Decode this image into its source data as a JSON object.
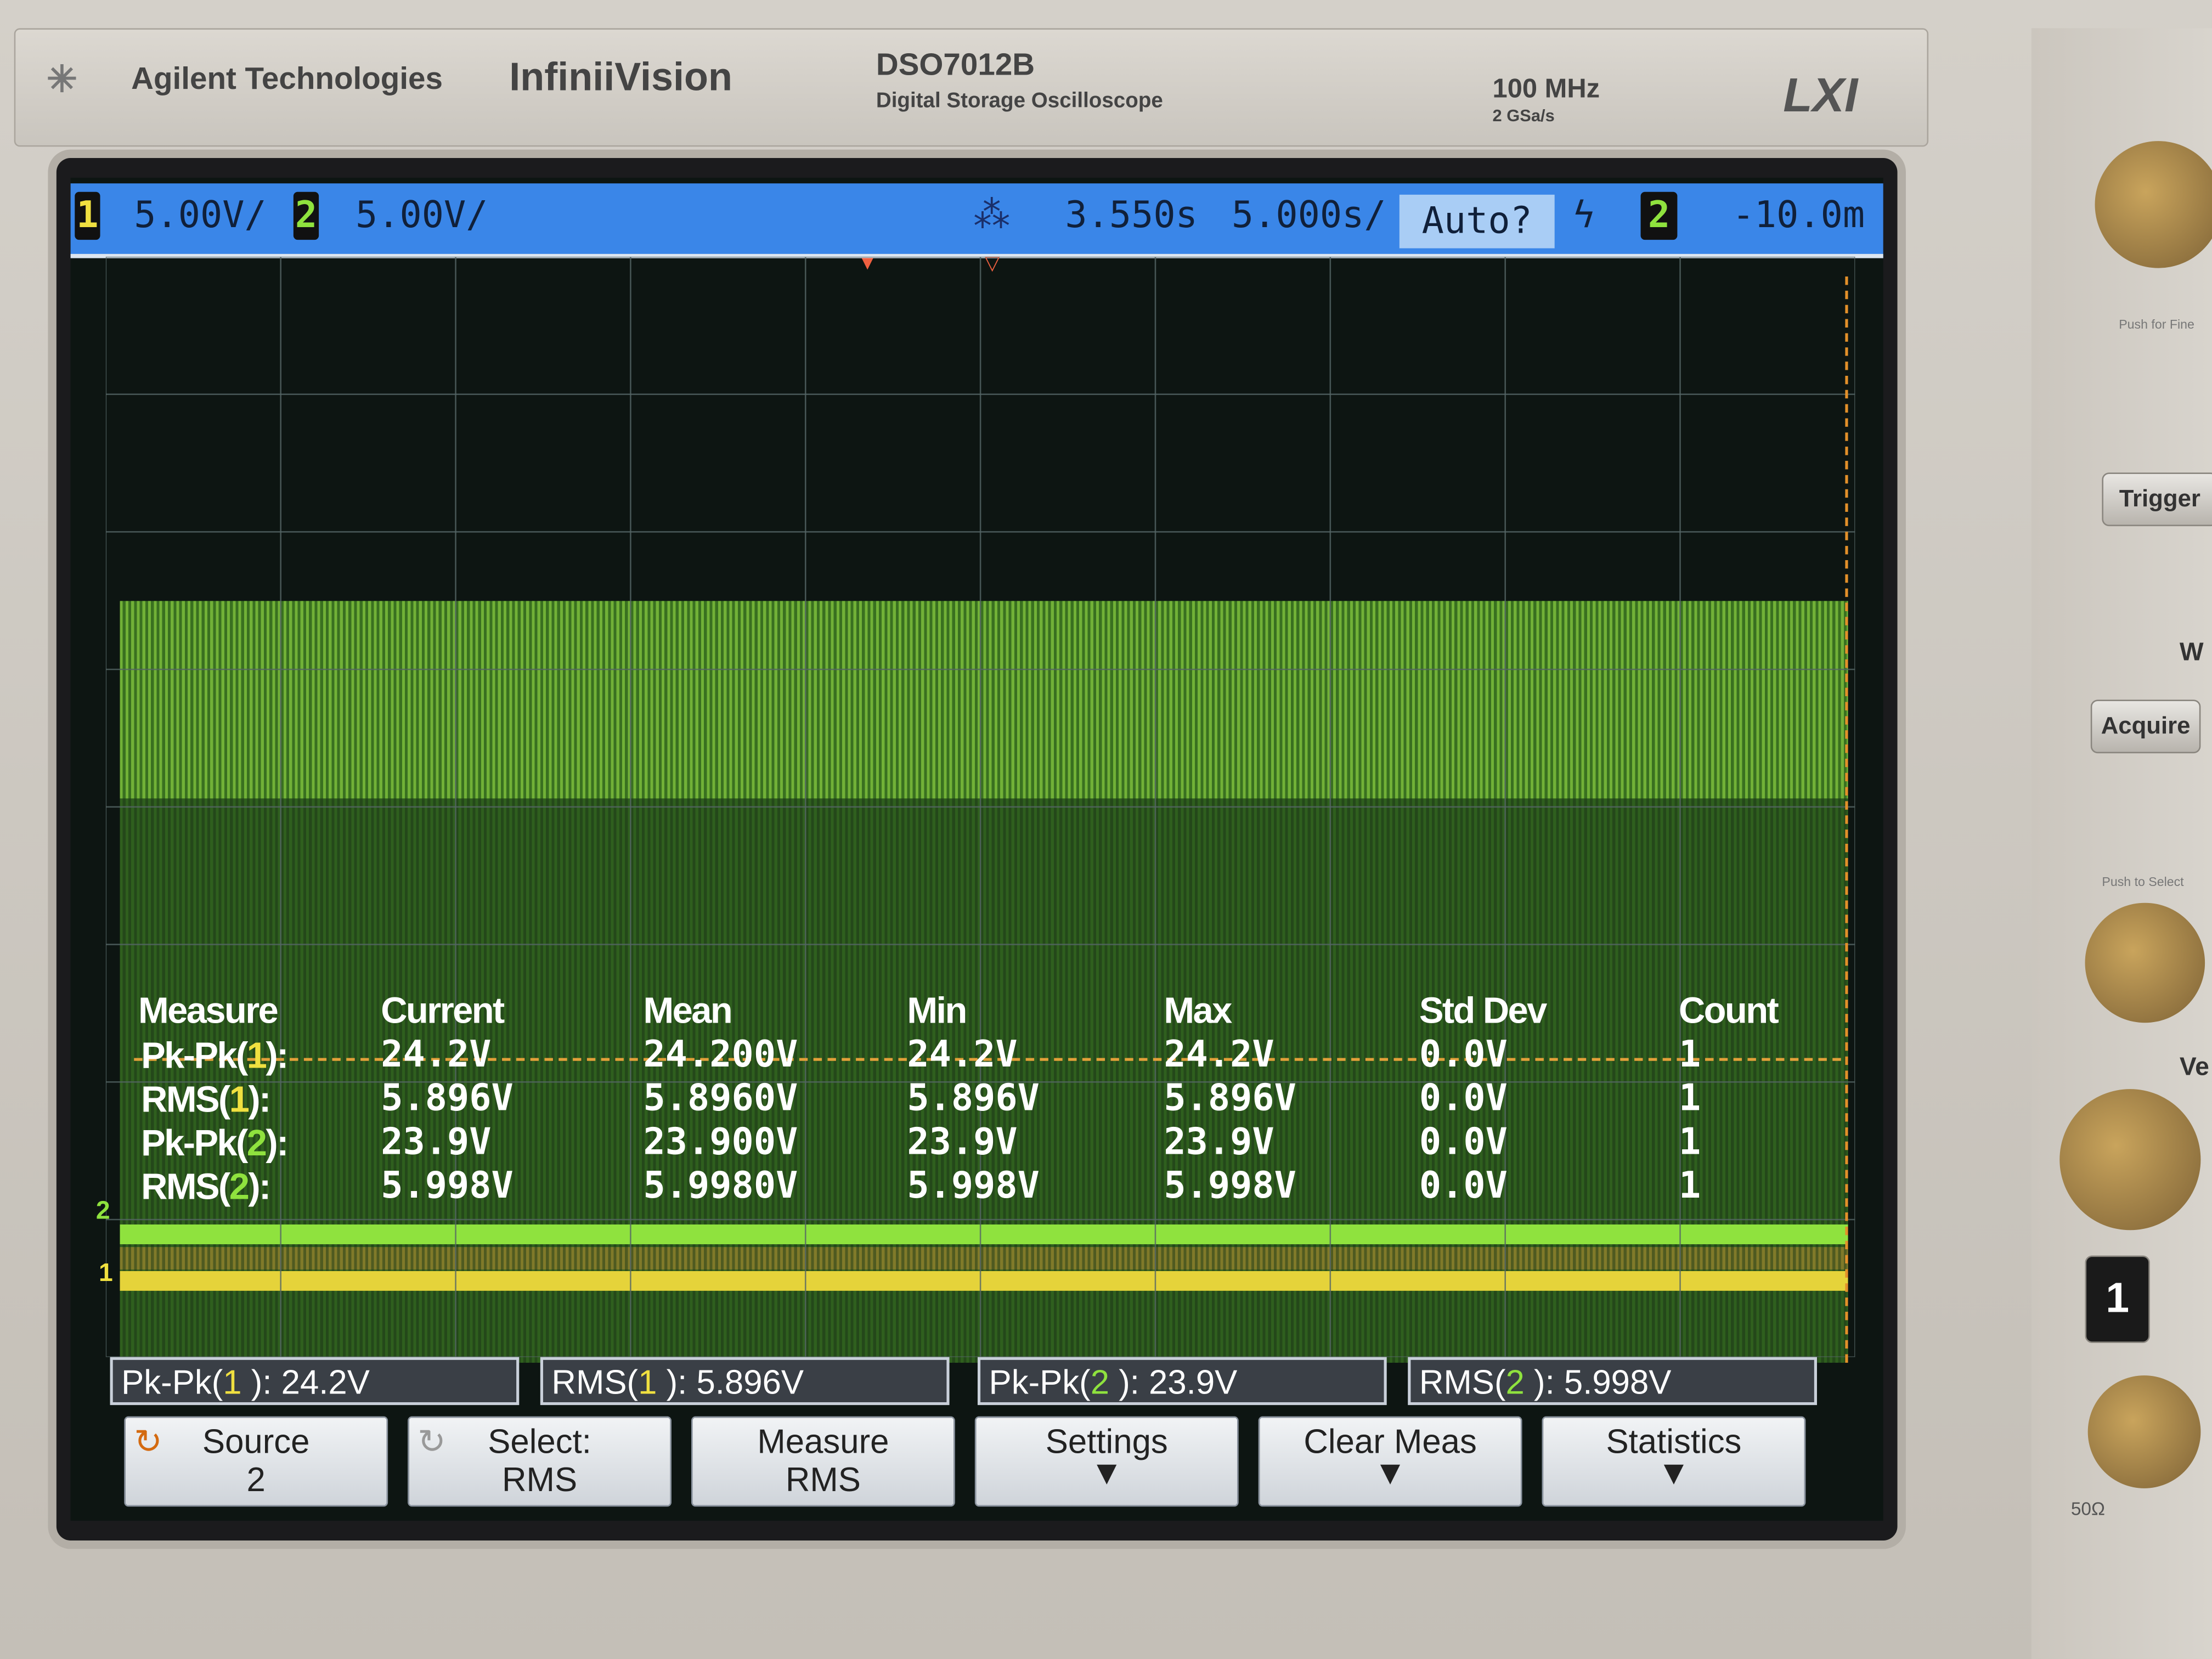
{
  "brand": {
    "company": "Agilent Technologies",
    "series": "InfiniiVision",
    "model": "DSO7012B",
    "model_desc": "Digital Storage Oscilloscope",
    "bandwidth": "100 MHz",
    "sample_rate": "2 GSa/s",
    "lxi": "LXI"
  },
  "status": {
    "ch1_num": "1",
    "ch1_scale": "5.00V/",
    "ch2_num": "2",
    "ch2_scale": "5.00V/",
    "time_delay": "3.550s",
    "time_scale": "5.000s/",
    "trigger_mode": "Auto?",
    "trigger_source": "2",
    "trigger_level": "-10.0m"
  },
  "colors": {
    "ch1": "#f0e040",
    "ch2": "#8fe23e",
    "status_bar": "#3a86e8"
  },
  "measure_table": {
    "headers": [
      "Measure",
      "Current",
      "Mean",
      "Min",
      "Max",
      "Std Dev",
      "Count"
    ],
    "rows": [
      {
        "name": "Pk-Pk(",
        "ch": "1",
        "end": "):",
        "current": "24.2V",
        "mean": "24.200V",
        "min": "24.2V",
        "max": "24.2V",
        "std": "0.0V",
        "count": "1"
      },
      {
        "name": "RMS(",
        "ch": "1",
        "end": "):",
        "current": "5.896V",
        "mean": "5.8960V",
        "min": "5.896V",
        "max": "5.896V",
        "std": "0.0V",
        "count": "1"
      },
      {
        "name": "Pk-Pk(",
        "ch": "2",
        "end": "):",
        "current": "23.9V",
        "mean": "23.900V",
        "min": "23.9V",
        "max": "23.9V",
        "std": "0.0V",
        "count": "1"
      },
      {
        "name": "RMS(",
        "ch": "2",
        "end": "):",
        "current": "5.998V",
        "mean": "5.9980V",
        "min": "5.998V",
        "max": "5.998V",
        "std": "0.0V",
        "count": "1"
      }
    ]
  },
  "measure_strip": [
    {
      "pre": "Pk-Pk(",
      "ch": "1",
      "post": " ): 24.2V"
    },
    {
      "pre": "RMS(",
      "ch": "1",
      "post": " ): 5.896V"
    },
    {
      "pre": "Pk-Pk(",
      "ch": "2",
      "post": " ): 23.9V"
    },
    {
      "pre": "RMS(",
      "ch": "2",
      "post": " ): 5.998V"
    }
  ],
  "softkeys": [
    {
      "line1": "Source",
      "line2": "2"
    },
    {
      "line1": "Select:",
      "line2": "RMS"
    },
    {
      "line1": "Measure",
      "line2": "RMS"
    },
    {
      "line1": "Settings",
      "line2": ""
    },
    {
      "line1": "Clear Meas",
      "line2": ""
    },
    {
      "line1": "Statistics",
      "line2": ""
    }
  ],
  "ground_markers": {
    "ch2": "2",
    "ch1": "1"
  },
  "panel": {
    "push_fine": "Push for Fine",
    "trigger": "Trigger",
    "acquire": "Acquire",
    "push_select": "Push to Select",
    "ch1_button": "1",
    "impedance": "50Ω",
    "w_label": "W",
    "ve_label": "Ve"
  }
}
